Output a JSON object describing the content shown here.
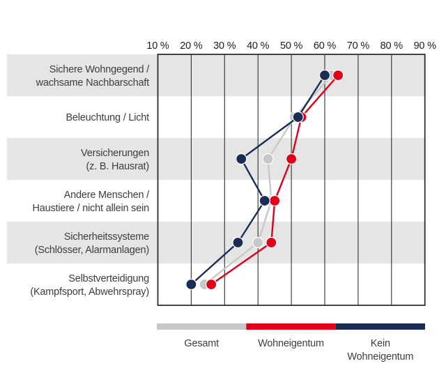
{
  "chart_data": {
    "type": "line",
    "orientation": "horizontal-categories",
    "x_axis": {
      "min": 10,
      "max": 90,
      "step": 10,
      "tick_labels": [
        "10 %",
        "20 %",
        "30 %",
        "40 %",
        "50 %",
        "60 %",
        "70 %",
        "80 %",
        "90 %"
      ],
      "position": "top"
    },
    "categories": [
      {
        "lines": [
          "Sichere Wohngegend /",
          "wachsame Nachbarschaft"
        ]
      },
      {
        "lines": [
          "Beleuchtung / Licht"
        ]
      },
      {
        "lines": [
          "Versicherungen",
          "(z. B. Hausrat)"
        ]
      },
      {
        "lines": [
          "Andere Menschen /",
          "Haustiere / nicht allein sein"
        ]
      },
      {
        "lines": [
          "Sicherheitssysteme",
          "(Schlösser, Alarmanlagen)"
        ]
      },
      {
        "lines": [
          "Selbstverteidigung",
          "(Kampfsport, Abwehrspray)"
        ]
      }
    ],
    "series": [
      {
        "name": "Gesamt",
        "color": "#c8c8c8",
        "values": [
          62,
          51,
          43,
          44,
          40,
          24
        ]
      },
      {
        "name": "Wohneigentum",
        "color": "#e00019",
        "values": [
          64,
          53,
          50,
          45,
          44,
          26
        ]
      },
      {
        "name": "Kein Wohneigentum",
        "color": "#1b2d55",
        "values": [
          60,
          52,
          35,
          42,
          34,
          20
        ]
      }
    ],
    "legend": {
      "position": "bottom",
      "entries": [
        {
          "lines": [
            "Gesamt"
          ]
        },
        {
          "lines": [
            "Wohneigentum"
          ]
        },
        {
          "lines": [
            "Kein",
            "Wohneigentum"
          ]
        }
      ]
    },
    "colors": {
      "row_band": "#e5e5e5",
      "grid": "#2f2f2f",
      "axis_text": "#1c1c1c",
      "label_text": "#3d3d3d"
    },
    "grid": true
  }
}
